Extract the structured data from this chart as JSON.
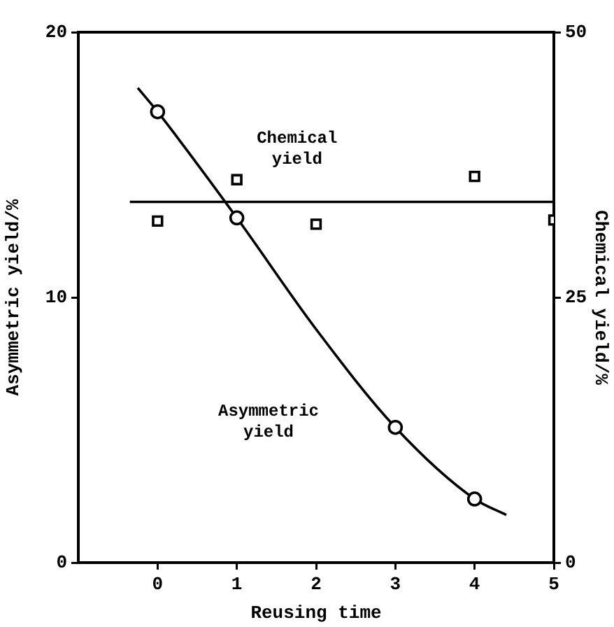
{
  "chart_data": {
    "type": "scatter",
    "xlabel": "Reusing time",
    "ylabel": "Asymmetric yield/%",
    "y2label": "Chemical yield/%",
    "xlim": [
      -1,
      5
    ],
    "xticks": [
      0,
      1,
      2,
      3,
      4,
      5
    ],
    "ylim": [
      0,
      20
    ],
    "yticks": [
      0,
      10,
      20
    ],
    "y2lim": [
      0,
      50
    ],
    "y2ticks": [
      0,
      25,
      50
    ],
    "grid": false,
    "legend": false,
    "series": [
      {
        "type": "scatter",
        "marker": "circle",
        "color": "#000000",
        "x": [
          0,
          1,
          3,
          4
        ],
        "values": [
          17,
          13,
          5.1,
          2.4
        ]
      },
      {
        "type": "line",
        "marker": "none",
        "color": "#000000",
        "x": [
          -0.25,
          0,
          1,
          2,
          3,
          4,
          4.4
        ],
        "values": [
          17.9,
          17,
          13,
          8.8,
          5.1,
          2.4,
          1.8
        ]
      },
      {
        "type": "scatter",
        "marker": "square",
        "axis": "y2",
        "color": "#000000",
        "x": [
          0,
          1,
          2,
          4,
          5
        ],
        "values": [
          32.2,
          36.1,
          31.9,
          36.4,
          32.3
        ]
      },
      {
        "type": "line",
        "marker": "none",
        "axis": "y2",
        "color": "#000000",
        "x": [
          -0.35,
          5
        ],
        "values": [
          34,
          34
        ]
      }
    ],
    "annotations": [
      "Chemical yield",
      "Asymmetric yield"
    ]
  }
}
